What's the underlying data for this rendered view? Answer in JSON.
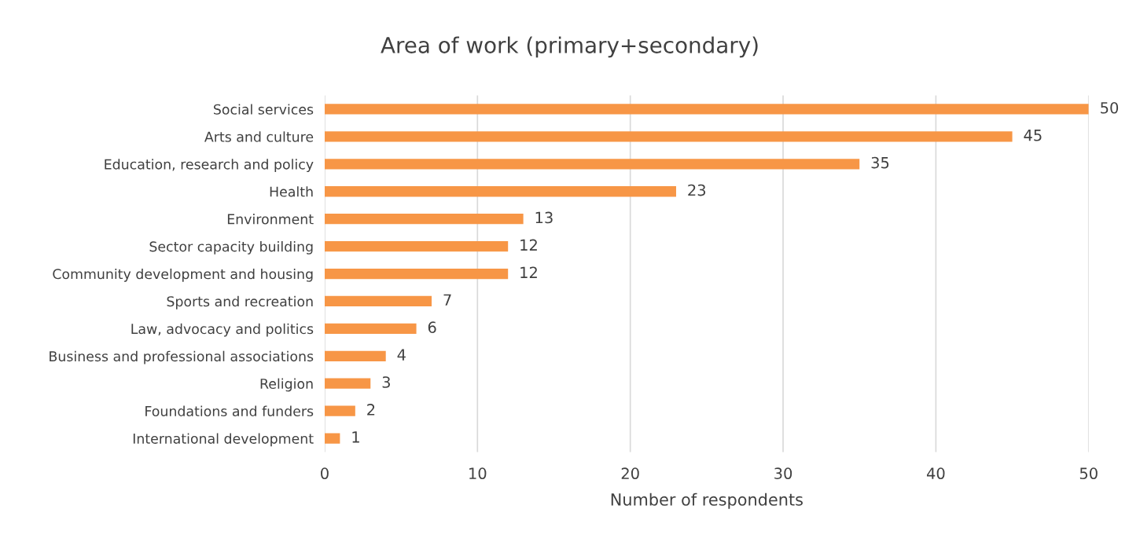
{
  "chart_data": {
    "type": "bar",
    "orientation": "horizontal",
    "title": "Area of work (primary+secondary)",
    "xlabel": "Number of respondents",
    "categories": [
      "Social services",
      "Arts and culture",
      "Education, research and policy",
      "Health",
      "Environment",
      "Sector capacity building",
      "Community development and housing",
      "Sports and recreation",
      "Law, advocacy and politics",
      "Business and professional associations",
      "Religion",
      "Foundations and funders",
      "International development"
    ],
    "values": [
      50,
      45,
      35,
      23,
      13,
      12,
      12,
      7,
      6,
      4,
      3,
      2,
      1
    ],
    "color": "#f79646",
    "xlim": [
      0,
      50
    ],
    "xticks": [
      0,
      10,
      20,
      30,
      40,
      50
    ],
    "grid": "x",
    "data_labels": true,
    "legend": false
  }
}
